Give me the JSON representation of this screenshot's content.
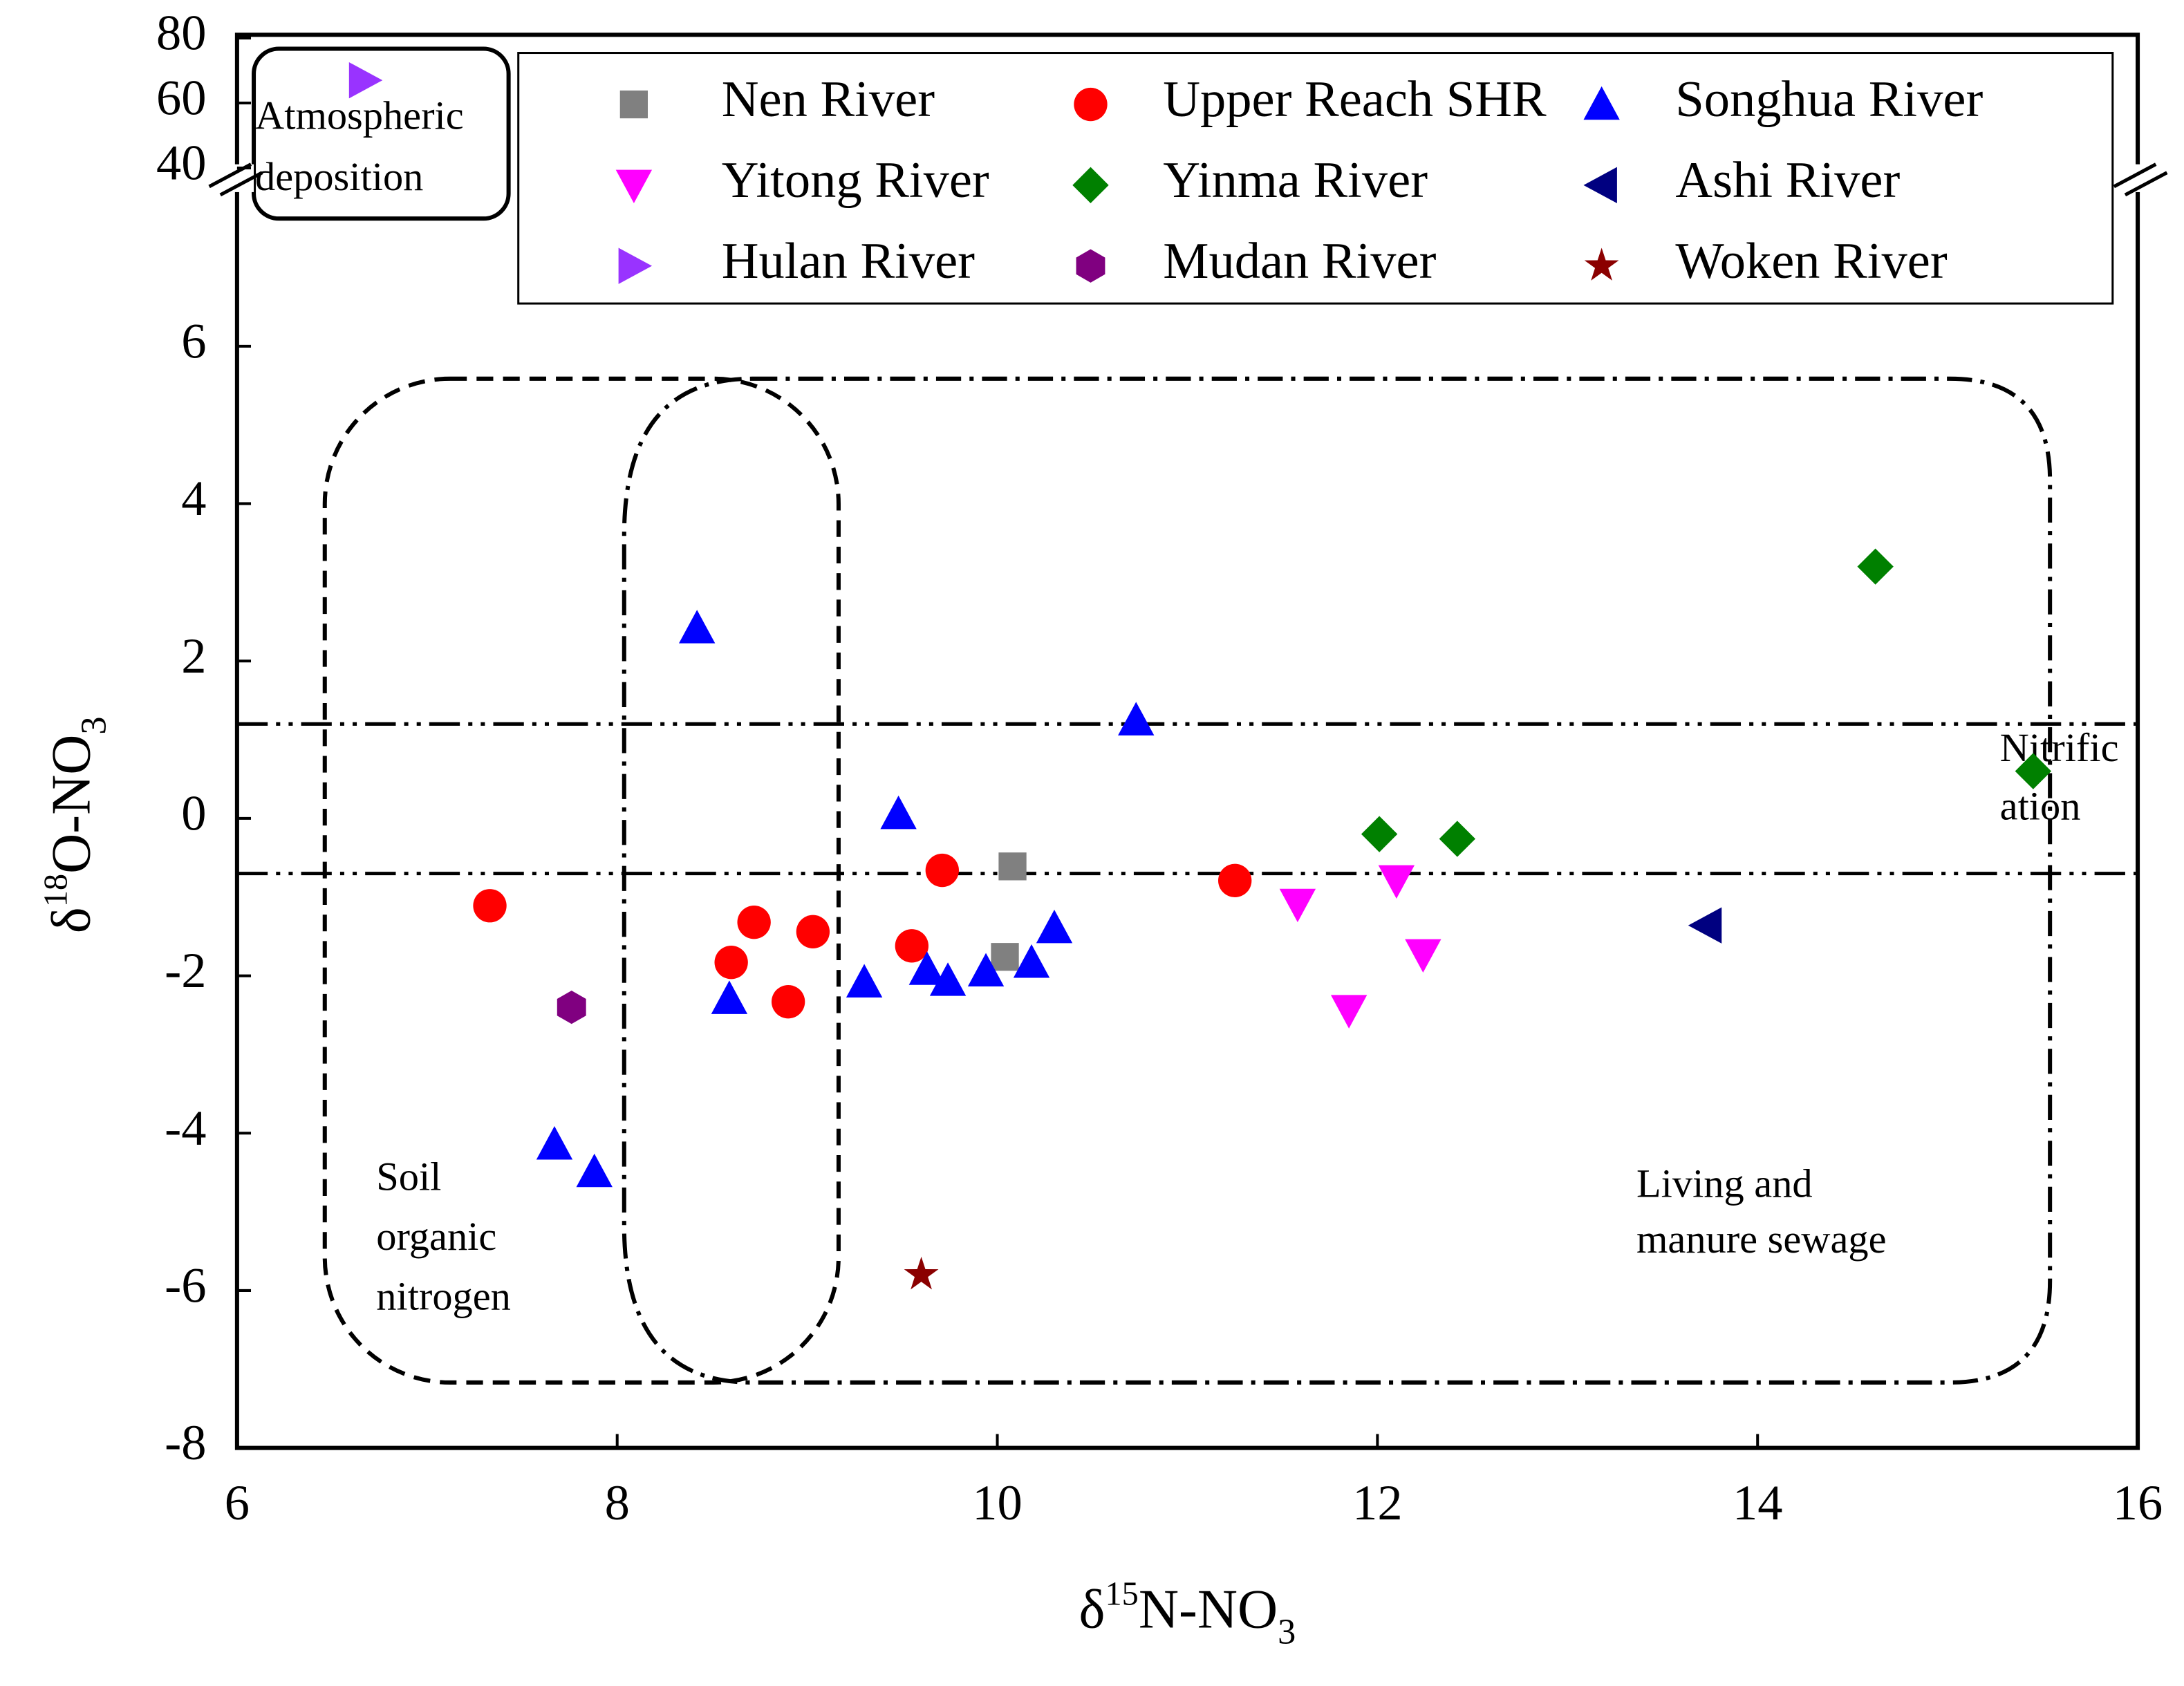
{
  "chart_data": {
    "type": "scatter",
    "xlabel": [
      "δ",
      "15",
      "N-NO",
      "3"
    ],
    "ylabel": [
      "δ",
      "18",
      "O-NO",
      "3"
    ],
    "xlim": [
      6,
      16
    ],
    "xticks": [
      6,
      8,
      10,
      12,
      14,
      16
    ],
    "ylim": [
      -8,
      8.1
    ],
    "yticks": [
      -8,
      -6,
      -4,
      -2,
      0,
      2,
      4,
      6
    ],
    "ylim_upper": [
      36,
      81
    ],
    "yticks_upper": [
      40,
      60,
      80
    ],
    "hlines": [
      1.2,
      -0.7
    ],
    "annotations": [
      [
        "Atmospheric",
        "deposition"
      ],
      [
        "Nitrific",
        "ation"
      ],
      [
        "Soil",
        "organic",
        "nitrogen"
      ],
      [
        "Living and",
        "manure sewage"
      ]
    ],
    "series": [
      {
        "name": "Nen River",
        "color": "#808080",
        "marker": "square",
        "x": [
          10.08,
          10.04
        ],
        "values": [
          -0.61,
          -1.76
        ]
      },
      {
        "name": "Upper Reach SHR",
        "color": "#ff0000",
        "marker": "circle",
        "x": [
          7.33,
          8.6,
          8.72,
          8.9,
          9.03,
          9.55,
          9.71,
          11.25
        ],
        "values": [
          -1.11,
          -1.83,
          -1.32,
          -2.33,
          -1.44,
          -1.62,
          -0.66,
          -0.79
        ]
      },
      {
        "name": "Songhua River",
        "color": "#0000ff",
        "marker": "triangle-up",
        "x": [
          8.42,
          10.73,
          9.48,
          8.59,
          9.3,
          9.63,
          9.74,
          9.94,
          10.18,
          10.3,
          7.67,
          7.88
        ],
        "values": [
          2.42,
          1.25,
          0.06,
          -2.29,
          -2.08,
          -1.92,
          -2.06,
          -1.94,
          -1.83,
          -1.39,
          -4.14,
          -4.49
        ]
      },
      {
        "name": "Yitong River",
        "color": "#ff00ff",
        "marker": "triangle-down",
        "x": [
          11.58,
          12.1,
          12.24,
          11.85
        ],
        "values": [
          -1.09,
          -0.79,
          -1.73,
          -2.44
        ]
      },
      {
        "name": "Yinma River",
        "color": "#008000",
        "marker": "diamond",
        "x": [
          14.62,
          15.45,
          12.01,
          12.42
        ],
        "values": [
          3.2,
          0.6,
          -0.2,
          -0.26
        ]
      },
      {
        "name": "Ashi River",
        "color": "#000080",
        "marker": "triangle-left",
        "x": [
          13.73
        ],
        "values": [
          -1.36
        ]
      },
      {
        "name": "Hulan River",
        "color": "#9933ff",
        "marker": "triangle-right",
        "axis": "upper",
        "x": [
          6.67
        ],
        "values": [
          67
        ]
      },
      {
        "name": "Mudan River",
        "color": "#800080",
        "marker": "hexagon",
        "x": [
          7.76
        ],
        "values": [
          -2.4
        ]
      },
      {
        "name": "Woken River",
        "color": "#8b0000",
        "marker": "star",
        "x": [
          9.6
        ],
        "values": [
          -5.8
        ]
      }
    ]
  }
}
